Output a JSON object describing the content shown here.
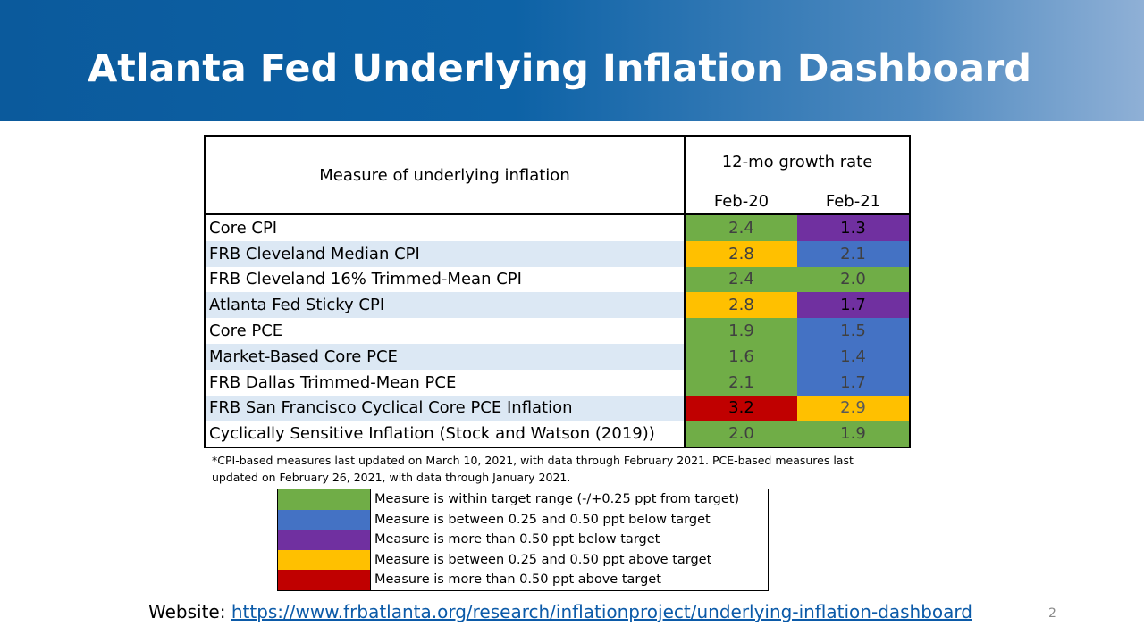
{
  "title": "Atlanta Fed Underlying Inflation Dashboard",
  "colors": {
    "green": "#70ad47",
    "blue": "#4472c4",
    "purple": "#7030a0",
    "yellow": "#ffc000",
    "red": "#c00000",
    "banner": "#0b5a9c"
  },
  "table": {
    "measure_header": "Measure of underlying inflation",
    "growth_header": "12-mo growth rate",
    "col1": "Feb-20",
    "col2": "Feb-21",
    "rows": [
      {
        "label": "Core CPI",
        "v1": "2.4",
        "c1": "green",
        "v2": "1.3",
        "c2": "purple"
      },
      {
        "label": "FRB Cleveland Median CPI",
        "v1": "2.8",
        "c1": "yellow",
        "v2": "2.1",
        "c2": "blue"
      },
      {
        "label": "FRB Cleveland 16% Trimmed-Mean CPI",
        "v1": "2.4",
        "c1": "green",
        "v2": "2.0",
        "c2": "green"
      },
      {
        "label": "Atlanta Fed Sticky CPI",
        "v1": "2.8",
        "c1": "yellow",
        "v2": "1.7",
        "c2": "purple"
      },
      {
        "label": "Core PCE",
        "v1": "1.9",
        "c1": "green",
        "v2": "1.5",
        "c2": "blue"
      },
      {
        "label": "Market-Based Core PCE",
        "v1": "1.6",
        "c1": "green",
        "v2": "1.4",
        "c2": "blue"
      },
      {
        "label": "FRB Dallas Trimmed-Mean PCE",
        "v1": "2.1",
        "c1": "green",
        "v2": "1.7",
        "c2": "blue"
      },
      {
        "label": "FRB San Francisco Cyclical Core PCE Inflation",
        "v1": "3.2",
        "c1": "red",
        "v2": "2.9",
        "c2": "yellow"
      },
      {
        "label": "Cyclically Sensitive Inflation (Stock and Watson (2019))",
        "v1": "2.0",
        "c1": "green",
        "v2": "1.9",
        "c2": "green"
      }
    ]
  },
  "footnote": "*CPI-based measures last updated on March 10, 2021, with data through February 2021. PCE-based measures last updated on February 26, 2021, with data through January 2021.",
  "legend": [
    {
      "color": "green",
      "text": "Measure is within target range (-/+0.25 ppt from target)"
    },
    {
      "color": "blue",
      "text": "Measure is between 0.25 and 0.50 ppt below target"
    },
    {
      "color": "purple",
      "text": "Measure is more than 0.50 ppt below target"
    },
    {
      "color": "yellow",
      "text": "Measure is between 0.25 and 0.50 ppt above target"
    },
    {
      "color": "red",
      "text": "Measure is more than 0.50 ppt above target"
    }
  ],
  "website": {
    "label": "Website:",
    "url": "https://www.frbatlanta.org/research/inflationproject/underlying-inflation-dashboard"
  },
  "page_number": "2"
}
